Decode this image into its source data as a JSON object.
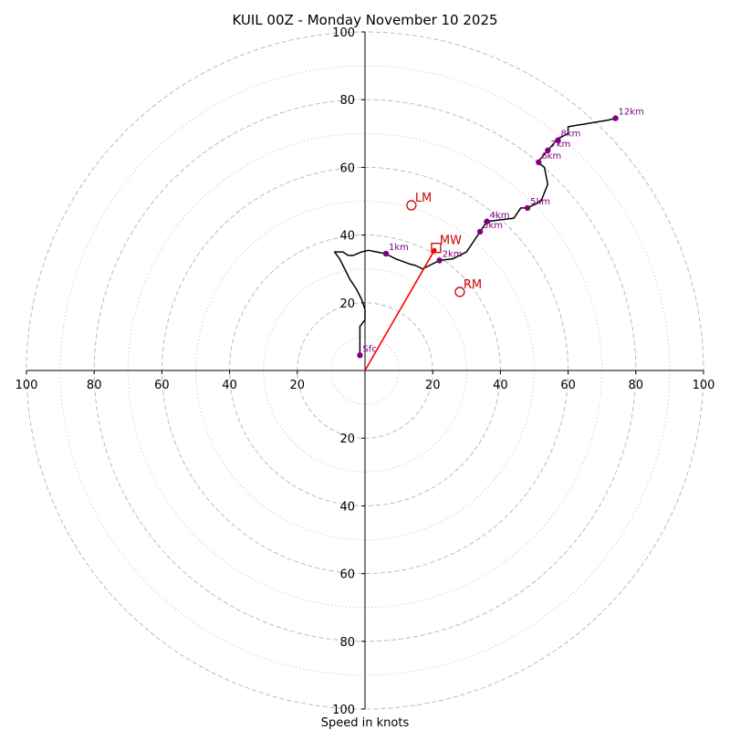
{
  "chart_data": {
    "type": "hodograph",
    "title": "KUIL 00Z - Monday November 10 2025",
    "xlabel": "Speed in knots",
    "units": "knots",
    "xlim": [
      -100,
      100
    ],
    "ylim": [
      -100,
      100
    ],
    "tick_labels": [
      "100",
      "80",
      "60",
      "40",
      "20"
    ],
    "rings_major": [
      20,
      40,
      60,
      80,
      100
    ],
    "rings_minor": [
      10,
      30,
      50,
      70,
      90
    ],
    "colors": {
      "trace": "#000000",
      "height_markers": "#800080",
      "storm_motion": "#cc0000",
      "bulk_shear_vector": "#ff0000",
      "grid": "#bbbbbb"
    },
    "hodograph_trace": [
      [
        -1.5,
        4.5
      ],
      [
        -1.5,
        8
      ],
      [
        -1.5,
        13
      ],
      [
        0,
        15
      ],
      [
        0,
        18
      ],
      [
        -1,
        21
      ],
      [
        -2.5,
        24
      ],
      [
        -4.5,
        27
      ],
      [
        -5.5,
        29
      ],
      [
        -6.5,
        31
      ],
      [
        -7.5,
        33
      ],
      [
        -9,
        35
      ],
      [
        -6.5,
        35
      ],
      [
        -5,
        34
      ],
      [
        -3.5,
        34
      ],
      [
        -1,
        35
      ],
      [
        1,
        35.5
      ],
      [
        3.5,
        35
      ],
      [
        6,
        34.5
      ],
      [
        9,
        33
      ],
      [
        13,
        31.5
      ],
      [
        15,
        31
      ],
      [
        17,
        30
      ],
      [
        19,
        31
      ],
      [
        22,
        32.5
      ],
      [
        26,
        33
      ],
      [
        30,
        35
      ],
      [
        32,
        38
      ],
      [
        34,
        41
      ],
      [
        36,
        44
      ],
      [
        44,
        45
      ],
      [
        46,
        48
      ],
      [
        48,
        48
      ],
      [
        52,
        50
      ],
      [
        54,
        55
      ],
      [
        53,
        60
      ],
      [
        51,
        61.5
      ],
      [
        54,
        65
      ],
      [
        57,
        68.5
      ],
      [
        60,
        70
      ],
      [
        60,
        72
      ],
      [
        72,
        74
      ],
      [
        74,
        74.5
      ]
    ],
    "height_markers": [
      {
        "label": "Sfc",
        "u": -1.5,
        "v": 4.5
      },
      {
        "label": "1km",
        "u": 6.2,
        "v": 34.5
      },
      {
        "label": "2km",
        "u": 22,
        "v": 32.5
      },
      {
        "label": "3km",
        "u": 34,
        "v": 41
      },
      {
        "label": "4km",
        "u": 36,
        "v": 44
      },
      {
        "label": "5km",
        "u": 48,
        "v": 48
      },
      {
        "label": "6km",
        "u": 51.3,
        "v": 61.5
      },
      {
        "label": "7km",
        "u": 54,
        "v": 65
      },
      {
        "label": "8km",
        "u": 57,
        "v": 68
      },
      {
        "label": "12km",
        "u": 74,
        "v": 74.5
      }
    ],
    "storm_motion": [
      {
        "label": "LM",
        "u": 13.7,
        "v": 48.8,
        "marker": "circle"
      },
      {
        "label": "RM",
        "u": 28,
        "v": 23.2,
        "marker": "circle"
      },
      {
        "label": "MW",
        "u": 21,
        "v": 36.2,
        "marker": "square"
      }
    ],
    "bulk_shear_vector": {
      "from": [
        0,
        0
      ],
      "to": [
        20.5,
        35.5
      ]
    }
  }
}
